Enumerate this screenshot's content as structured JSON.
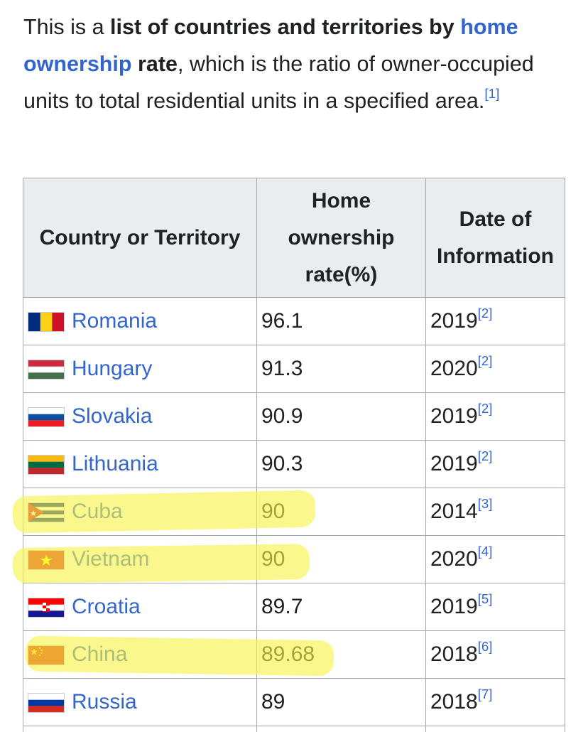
{
  "intro": {
    "t1": "This is a ",
    "t2": "list of countries and territories by ",
    "link": "home ownership",
    "t3": " rate",
    "t4": ", which is the ratio of owner-occupied units to total residential units in a specified area.",
    "ref": "[1]"
  },
  "table": {
    "headers": [
      "Country or Territory",
      "Home ownership rate(%)",
      "Date of Information"
    ],
    "rows": [
      {
        "country": "Romania",
        "flag": "romania-flag",
        "rate": "96.1",
        "year": "2019",
        "ref": "[2]"
      },
      {
        "country": "Hungary",
        "flag": "hungary-flag",
        "rate": "91.3",
        "year": "2020",
        "ref": "[2]"
      },
      {
        "country": "Slovakia",
        "flag": "slovakia-flag",
        "rate": "90.9",
        "year": "2019",
        "ref": "[2]"
      },
      {
        "country": "Lithuania",
        "flag": "lithuania-flag",
        "rate": "90.3",
        "year": "2019",
        "ref": "[2]"
      },
      {
        "country": "Cuba",
        "flag": "cuba-flag",
        "rate": "90",
        "year": "2014",
        "ref": "[3]"
      },
      {
        "country": "Vietnam",
        "flag": "vietnam-flag",
        "rate": "90",
        "year": "2020",
        "ref": "[4]"
      },
      {
        "country": "Croatia",
        "flag": "croatia-flag",
        "rate": "89.7",
        "year": "2019",
        "ref": "[5]"
      },
      {
        "country": "China",
        "flag": "china-flag",
        "rate": "89.68",
        "year": "2018",
        "ref": "[6]"
      },
      {
        "country": "Russia",
        "flag": "russia-flag",
        "rate": "89",
        "year": "2018",
        "ref": "[7]"
      }
    ]
  },
  "colors": {
    "link": "#3366cc",
    "header_bg": "#eaecf0",
    "border": "#a2a9b1",
    "highlighter": "#f7f346"
  }
}
